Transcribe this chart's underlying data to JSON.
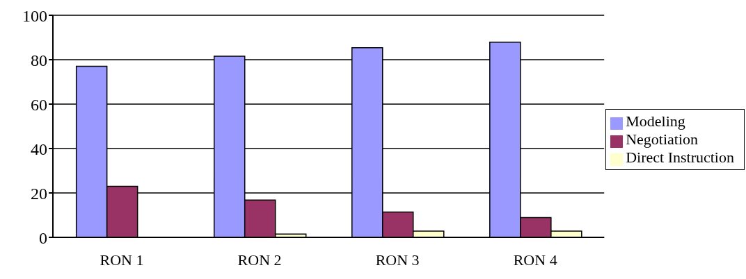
{
  "chart_data": {
    "type": "bar",
    "categories": [
      "RON 1",
      "RON 2",
      "RON 3",
      "RON 4"
    ],
    "series": [
      {
        "name": "Modeling",
        "color": "#9999ff",
        "values": [
          77,
          81.6,
          85.4,
          87.9
        ]
      },
      {
        "name": "Negotiation",
        "color": "#993366",
        "values": [
          23,
          16.8,
          11.4,
          8.9
        ]
      },
      {
        "name": "Direct Instruction",
        "color": "#ffffcc",
        "values": [
          0,
          1.5,
          2.8,
          2.8
        ]
      }
    ],
    "ylim": [
      0,
      100
    ],
    "yticks": [
      0,
      20,
      40,
      60,
      80,
      100
    ],
    "grid": "y",
    "legend": "right"
  }
}
